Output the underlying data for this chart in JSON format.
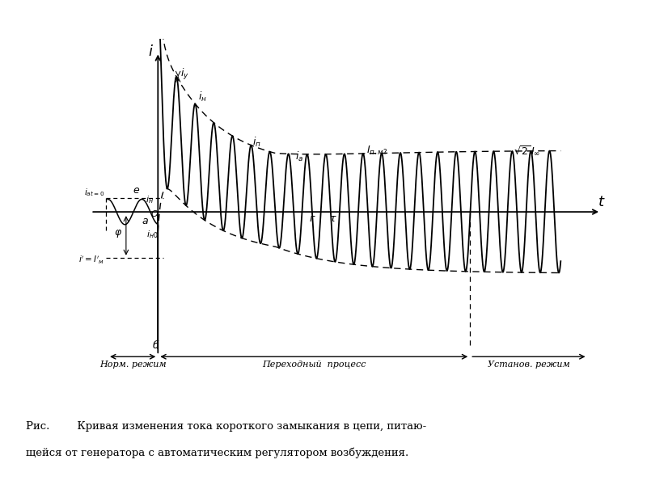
{
  "bg_color": "#ffffff",
  "caption_line1": "Рис.        Кривая изменения тока короткого замыкания в цепи, питаю-",
  "caption_line2": "щейся от генератора с автоматическим регулятором возбуждения.",
  "norm_label": "Норм. режим",
  "trans_label": "Переходный  процесс",
  "steady_label": "Установ. режим"
}
